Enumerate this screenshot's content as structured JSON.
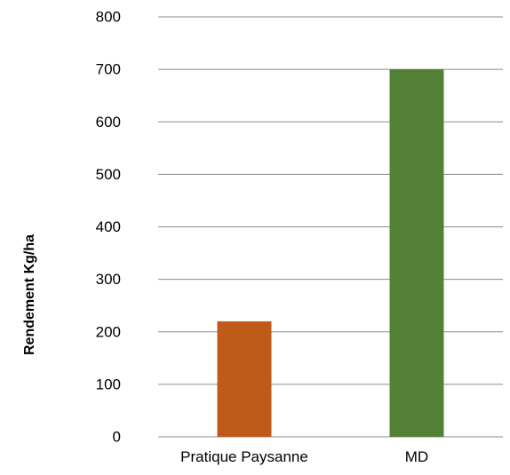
{
  "chart_data": {
    "type": "bar",
    "title": "",
    "xlabel": "",
    "ylabel": "Rendement Kg/ha",
    "categories": [
      "Pratique Paysanne",
      "MD"
    ],
    "values": [
      220,
      700
    ],
    "colors": [
      "#c05a1b",
      "#538135"
    ],
    "ylim": [
      0,
      800
    ],
    "yticks": [
      "0",
      "100",
      "200",
      "300",
      "400",
      "500",
      "600",
      "700",
      "800"
    ],
    "grid": true,
    "legend": "none"
  }
}
